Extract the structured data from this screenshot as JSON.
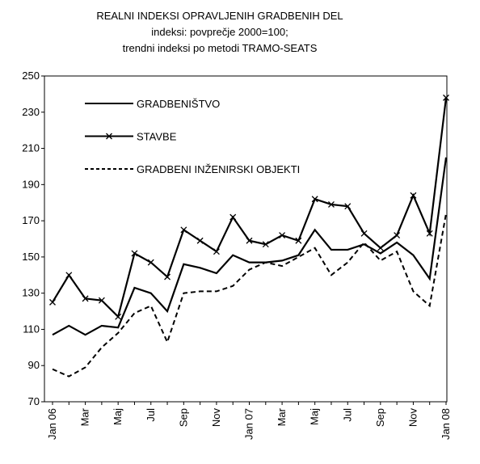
{
  "chart_data": {
    "type": "line",
    "title": "REALNI INDEKSI OPRAVLJENIH GRADBENIH DEL",
    "subtitle": [
      "indeksi: povprečje 2000=100;",
      "trendni indeksi po metodi TRAMO-SEATS"
    ],
    "categories": [
      "Jan 06",
      null,
      "Mar",
      null,
      "Maj",
      null,
      "Jul",
      null,
      "Sep",
      null,
      "Nov",
      null,
      "Jan 07",
      null,
      "Mar",
      null,
      "Maj",
      null,
      "Jul",
      null,
      "Sep",
      null,
      "Nov",
      null,
      "Jan 08"
    ],
    "series": [
      {
        "name": "GRADBENIŠTVO",
        "color": "#000000",
        "dash": false,
        "marker": null,
        "values": [
          107,
          112,
          107,
          112,
          111,
          133,
          130,
          120,
          146,
          144,
          141,
          151,
          147,
          147,
          148,
          151,
          165,
          154,
          154,
          157,
          152,
          158,
          151,
          138,
          205
        ]
      },
      {
        "name": "STAVBE",
        "color": "#000000",
        "dash": false,
        "marker": "x",
        "values": [
          125,
          140,
          127,
          126,
          117,
          152,
          147,
          139,
          165,
          159,
          153,
          172,
          159,
          157,
          162,
          159,
          182,
          179,
          178,
          163,
          155,
          162,
          184,
          163,
          238
        ]
      },
      {
        "name": "GRADBENI INŽENIRSKI OBJEKTI",
        "color": "#000000",
        "dash": true,
        "marker": null,
        "values": [
          88,
          84,
          89,
          100,
          108,
          119,
          123,
          103,
          130,
          131,
          131,
          134,
          143,
          147,
          145,
          150,
          155,
          140,
          147,
          158,
          148,
          153,
          131,
          123,
          174
        ]
      }
    ],
    "ylim": [
      70,
      250
    ],
    "yticks": [
      70,
      90,
      110,
      130,
      150,
      170,
      190,
      210,
      230,
      250
    ],
    "grid": false,
    "legend": "upper left"
  }
}
